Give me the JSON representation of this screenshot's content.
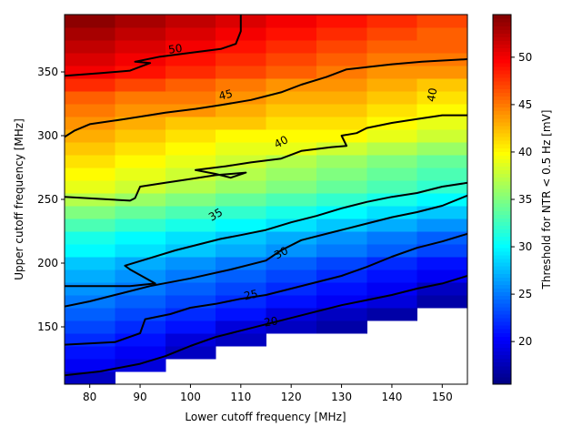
{
  "chart_data": {
    "type": "heatmap",
    "xlabel": "Lower cutoff frequency [MHz]",
    "ylabel": "Upper cutoff frequency [MHz]",
    "colorbar_label": "Threshold for NTR < 0.5 Hz [mV]",
    "colormap": "jet",
    "x_ticks": [
      80,
      90,
      100,
      110,
      120,
      130,
      140,
      150
    ],
    "y_ticks": [
      150,
      200,
      250,
      300,
      350
    ],
    "colorbar_ticks": [
      20,
      25,
      30,
      35,
      40,
      45,
      50
    ],
    "xlim": [
      75,
      155
    ],
    "ylim": [
      105,
      395
    ],
    "color_range": [
      15.5,
      54.5
    ],
    "x_centers": [
      80,
      90,
      100,
      110,
      120,
      130,
      140,
      150
    ],
    "y_centers": [
      110,
      120,
      130,
      140,
      150,
      160,
      170,
      180,
      190,
      200,
      210,
      220,
      230,
      240,
      250,
      260,
      270,
      280,
      290,
      300,
      310,
      320,
      330,
      340,
      350,
      360,
      370,
      380,
      390
    ],
    "values": [
      [
        18,
        null,
        null,
        null,
        null,
        null,
        null,
        null
      ],
      [
        20,
        19,
        null,
        null,
        null,
        null,
        null,
        null
      ],
      [
        21,
        20,
        18,
        null,
        null,
        null,
        null,
        null
      ],
      [
        22,
        21,
        19,
        18,
        null,
        null,
        null,
        null
      ],
      [
        23,
        22,
        21,
        19,
        18,
        17,
        null,
        null
      ],
      [
        24,
        23,
        22,
        21,
        19,
        18,
        17,
        null
      ],
      [
        25,
        24,
        23,
        22,
        21,
        20,
        19,
        17
      ],
      [
        26,
        25,
        24,
        23,
        22,
        21,
        20,
        18
      ],
      [
        27,
        26,
        25,
        24,
        23,
        22,
        21,
        20
      ],
      [
        28,
        27,
        26,
        25,
        24,
        23,
        22,
        21
      ],
      [
        30,
        29,
        28,
        27,
        26,
        25,
        24,
        23
      ],
      [
        31,
        30,
        29,
        28,
        27,
        26,
        25,
        24
      ],
      [
        33,
        32,
        31,
        30,
        29,
        28,
        27,
        26
      ],
      [
        35,
        34,
        33,
        32,
        31,
        30,
        29,
        28
      ],
      [
        37,
        36,
        35,
        34,
        33,
        32,
        31,
        30
      ],
      [
        39,
        38,
        37,
        36,
        35,
        34,
        33,
        32
      ],
      [
        40,
        39,
        38,
        37,
        36,
        35,
        34,
        33
      ],
      [
        41,
        40,
        39,
        38,
        37,
        36,
        35,
        34
      ],
      [
        42,
        41,
        40,
        39,
        39,
        38,
        37,
        36
      ],
      [
        43,
        42,
        41,
        40,
        40,
        40,
        39,
        38
      ],
      [
        44,
        43,
        42,
        42,
        41,
        41,
        40,
        39
      ],
      [
        45,
        44,
        44,
        43,
        42,
        42,
        41,
        40
      ],
      [
        46,
        45,
        45,
        44,
        43,
        43,
        42,
        41
      ],
      [
        48,
        47,
        46,
        45,
        44,
        44,
        43,
        42
      ],
      [
        50,
        49,
        48,
        47,
        46,
        45,
        44,
        44
      ],
      [
        51,
        50,
        49,
        48,
        47,
        46,
        45,
        45
      ],
      [
        52,
        51,
        50,
        49,
        48,
        47,
        46,
        46
      ],
      [
        53,
        52,
        51,
        50,
        49,
        48,
        47,
        46
      ],
      [
        54,
        53,
        52,
        51,
        50,
        49,
        48,
        47
      ]
    ],
    "contours": [
      {
        "level": "20",
        "points": [
          [
            75,
            112
          ],
          [
            82,
            115
          ],
          [
            90,
            121
          ],
          [
            95,
            127
          ],
          [
            100,
            135
          ],
          [
            105,
            142
          ],
          [
            110,
            147
          ],
          [
            115,
            152
          ],
          [
            120,
            157
          ],
          [
            125,
            162
          ],
          [
            130,
            167
          ],
          [
            135,
            171
          ],
          [
            140,
            175
          ],
          [
            145,
            180
          ],
          [
            150,
            184
          ],
          [
            155,
            190
          ]
        ]
      },
      {
        "level": "25",
        "points": [
          [
            75,
            136
          ],
          [
            85,
            138
          ],
          [
            90,
            145
          ],
          [
            91,
            156
          ],
          [
            96,
            160
          ],
          [
            100,
            165
          ],
          [
            105,
            168
          ],
          [
            110,
            172
          ],
          [
            115,
            175
          ],
          [
            120,
            180
          ],
          [
            125,
            185
          ],
          [
            130,
            190
          ],
          [
            135,
            197
          ],
          [
            140,
            205
          ],
          [
            145,
            212
          ],
          [
            150,
            217
          ],
          [
            155,
            223
          ]
        ]
      },
      {
        "level": "30",
        "points": [
          [
            75,
            166
          ],
          [
            80,
            170
          ],
          [
            86,
            176
          ],
          [
            92,
            182
          ],
          [
            100,
            188
          ],
          [
            108,
            195
          ],
          [
            115,
            202
          ],
          [
            118,
            210
          ],
          [
            122,
            218
          ],
          [
            128,
            224
          ],
          [
            134,
            230
          ],
          [
            140,
            236
          ],
          [
            145,
            240
          ],
          [
            150,
            245
          ],
          [
            155,
            253
          ]
        ]
      },
      {
        "level": "35",
        "points": [
          [
            75,
            182
          ],
          [
            80,
            182
          ],
          [
            88,
            182
          ],
          [
            93,
            184
          ],
          [
            88,
            195
          ],
          [
            87,
            198
          ],
          [
            92,
            204
          ],
          [
            97,
            210
          ],
          [
            101,
            214
          ],
          [
            106,
            219
          ],
          [
            110,
            222
          ],
          [
            115,
            226
          ],
          [
            120,
            232
          ],
          [
            125,
            237
          ],
          [
            130,
            243
          ],
          [
            135,
            248
          ],
          [
            140,
            252
          ],
          [
            145,
            255
          ],
          [
            150,
            260
          ],
          [
            155,
            263
          ]
        ]
      },
      {
        "level": "40",
        "points": [
          [
            75,
            252
          ],
          [
            88,
            249
          ],
          [
            89,
            251
          ],
          [
            90,
            260
          ],
          [
            95,
            263
          ],
          [
            100,
            266
          ],
          [
            105,
            269
          ],
          [
            111,
            271
          ],
          [
            108,
            267
          ],
          [
            105,
            270
          ],
          [
            101,
            273
          ],
          [
            107,
            276
          ],
          [
            112,
            279
          ],
          [
            118,
            282
          ],
          [
            122,
            288
          ],
          [
            128,
            291
          ],
          [
            131,
            292
          ],
          [
            130,
            300
          ],
          [
            133,
            302
          ],
          [
            135,
            306
          ],
          [
            140,
            310
          ],
          [
            145,
            313
          ],
          [
            150,
            316
          ],
          [
            155,
            316
          ]
        ]
      },
      {
        "level": "45",
        "points": [
          [
            75,
            299
          ],
          [
            77,
            304
          ],
          [
            80,
            309
          ],
          [
            87,
            313
          ],
          [
            95,
            318
          ],
          [
            101,
            321
          ],
          [
            106,
            324
          ],
          [
            112,
            328
          ],
          [
            118,
            334
          ],
          [
            122,
            340
          ],
          [
            127,
            346
          ],
          [
            131,
            352
          ],
          [
            140,
            356
          ],
          [
            146,
            358
          ],
          [
            155,
            360
          ]
        ]
      },
      {
        "level": "50",
        "points": [
          [
            75,
            347
          ],
          [
            82,
            349
          ],
          [
            88,
            351
          ],
          [
            92,
            357
          ],
          [
            89,
            358
          ],
          [
            94,
            362
          ],
          [
            100,
            365
          ],
          [
            106,
            368
          ],
          [
            109,
            372
          ],
          [
            110,
            382
          ],
          [
            110,
            390
          ],
          [
            110,
            395
          ]
        ]
      }
    ],
    "contour_label_items": [
      {
        "text": "50",
        "x": 97,
        "y": 368,
        "angle": -8
      },
      {
        "text": "45",
        "x": 107,
        "y": 332,
        "angle": -14
      },
      {
        "text": "40",
        "x": 148,
        "y": 332,
        "angle": -80
      },
      {
        "text": "40",
        "x": 118,
        "y": 295,
        "angle": -28
      },
      {
        "text": "35",
        "x": 105,
        "y": 238,
        "angle": -30
      },
      {
        "text": "30",
        "x": 118,
        "y": 208,
        "angle": -28
      },
      {
        "text": "25",
        "x": 112,
        "y": 175,
        "angle": -12
      },
      {
        "text": "20",
        "x": 116,
        "y": 154,
        "angle": -10
      }
    ]
  }
}
